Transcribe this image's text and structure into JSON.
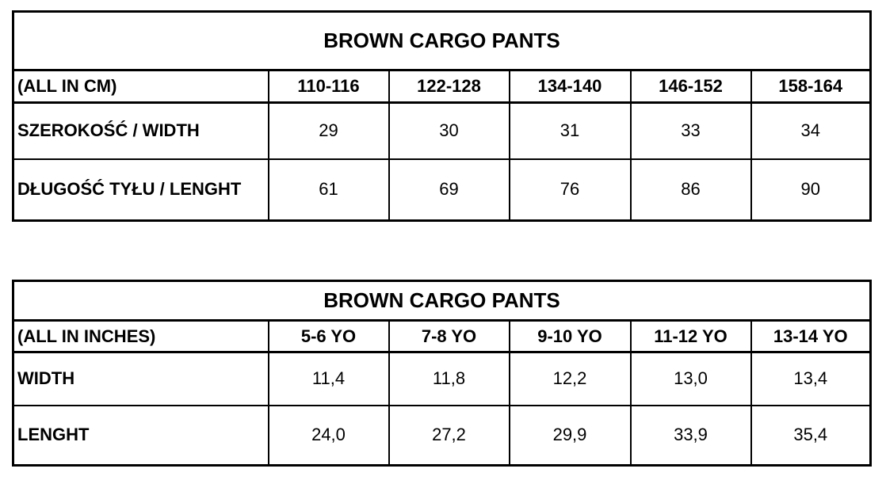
{
  "tables": [
    {
      "title": "BROWN CARGO PANTS",
      "header": [
        "(ALL IN CM)",
        "110-116",
        "122-128",
        "134-140",
        "146-152",
        "158-164"
      ],
      "rows": [
        [
          "SZEROKOŚĆ / WIDTH",
          "29",
          "30",
          "31",
          "33",
          "34"
        ],
        [
          "DŁUGOŚĆ TYŁU / LENGHT",
          "61",
          "69",
          "76",
          "86",
          "90"
        ]
      ]
    },
    {
      "title": "BROWN CARGO PANTS",
      "header": [
        "(ALL IN INCHES)",
        "5-6 YO",
        "7-8 YO",
        "9-10 YO",
        "11-12 YO",
        "13-14 YO"
      ],
      "rows": [
        [
          "WIDTH",
          "11,4",
          "11,8",
          "12,2",
          "13,0",
          "13,4"
        ],
        [
          "LENGHT",
          "24,0",
          "27,2",
          "29,9",
          "33,9",
          "35,4"
        ]
      ]
    }
  ]
}
